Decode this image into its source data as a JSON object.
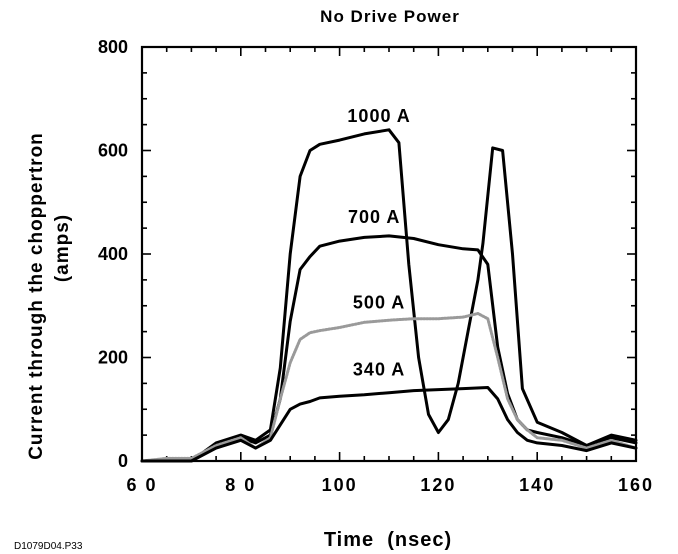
{
  "chart_data": {
    "type": "line",
    "title": "No Drive Power",
    "xlabel": "Time  (nsec)",
    "ylabel": "Current  through  the  choppertron",
    "ylabel2": "(amps)",
    "xlim": [
      60,
      160
    ],
    "ylim": [
      0,
      800
    ],
    "xticks": [
      "6 0",
      "8 0",
      "100",
      "120",
      "140",
      "160"
    ],
    "xtick_values": [
      60,
      80,
      100,
      120,
      140,
      160
    ],
    "yticks": [
      "0",
      "200",
      "400",
      "600",
      "800"
    ],
    "ytick_values": [
      0,
      200,
      400,
      600,
      800
    ],
    "grid": false,
    "series": [
      {
        "name": "1000  A",
        "color": "#000000",
        "style": "solid",
        "x": [
          60,
          70,
          75,
          80,
          83,
          86,
          88,
          90,
          92,
          94,
          96,
          100,
          105,
          110,
          112,
          114,
          116,
          118,
          120,
          122,
          124,
          126,
          128,
          129,
          131,
          133,
          135,
          137,
          140,
          145,
          150,
          155,
          160
        ],
        "y": [
          0,
          0,
          35,
          50,
          40,
          60,
          180,
          400,
          550,
          600,
          612,
          620,
          632,
          640,
          615,
          380,
          200,
          90,
          55,
          80,
          150,
          250,
          350,
          420,
          605,
          600,
          400,
          140,
          75,
          55,
          30,
          50,
          40
        ]
      },
      {
        "name": "700  A",
        "color": "#000000",
        "style": "solid",
        "x": [
          60,
          70,
          75,
          80,
          83,
          86,
          88,
          90,
          92,
          94,
          96,
          100,
          105,
          110,
          115,
          120,
          125,
          128,
          130,
          132,
          134,
          136,
          138,
          140,
          145,
          150,
          155,
          160
        ],
        "y": [
          0,
          0,
          30,
          45,
          35,
          50,
          120,
          270,
          370,
          395,
          415,
          425,
          432,
          435,
          430,
          418,
          410,
          408,
          380,
          220,
          130,
          80,
          60,
          55,
          45,
          30,
          45,
          35
        ]
      },
      {
        "name": "500  A",
        "color": "#9a9a9a",
        "style": "dotted",
        "x": [
          60,
          65,
          70,
          75,
          80,
          83,
          86,
          88,
          90,
          92,
          94,
          96,
          100,
          105,
          110,
          115,
          120,
          125,
          128,
          130,
          132,
          134,
          136,
          138,
          140,
          145,
          150,
          155,
          160
        ],
        "y": [
          0,
          5,
          5,
          30,
          45,
          25,
          45,
          120,
          190,
          235,
          248,
          252,
          258,
          268,
          272,
          275,
          275,
          278,
          285,
          275,
          200,
          120,
          80,
          60,
          45,
          40,
          25,
          40,
          25
        ]
      },
      {
        "name": "340  A",
        "color": "#000000",
        "style": "solid",
        "x": [
          60,
          70,
          75,
          80,
          83,
          86,
          88,
          90,
          92,
          94,
          96,
          100,
          105,
          110,
          115,
          120,
          125,
          130,
          132,
          134,
          136,
          138,
          140,
          145,
          150,
          155,
          160
        ],
        "y": [
          0,
          0,
          25,
          40,
          25,
          40,
          70,
          100,
          110,
          115,
          122,
          125,
          128,
          132,
          136,
          138,
          140,
          142,
          120,
          80,
          55,
          40,
          35,
          30,
          20,
          35,
          25
        ]
      }
    ],
    "annotations": [
      {
        "text": "1000  A",
        "x": 108,
        "y": 655
      },
      {
        "text": "700  A",
        "x": 107,
        "y": 460
      },
      {
        "text": "500  A",
        "x": 108,
        "y": 295
      },
      {
        "text": "340  A",
        "x": 108,
        "y": 165
      }
    ]
  },
  "caption": "D1079D04.P33"
}
